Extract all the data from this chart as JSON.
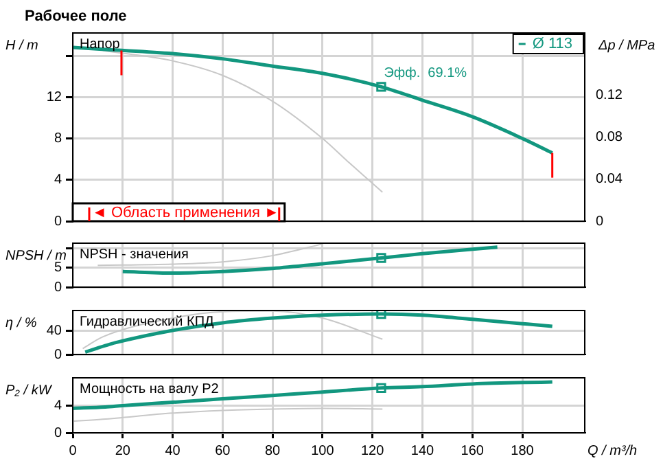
{
  "chart_data": [
    {
      "type": "line",
      "title": "Рабочее поле",
      "ylabel": "H / m",
      "y2label": "Δp / MPa",
      "xlim": [
        0,
        205
      ],
      "xticks": [
        0,
        20,
        40,
        60,
        80,
        100,
        120,
        140,
        160,
        180
      ],
      "ylim": [
        0,
        18.2
      ],
      "yticks": [
        0,
        4,
        8,
        12,
        {
          "value": 16,
          "label": null
        }
      ],
      "y2lim": [
        0,
        0.179
      ],
      "y2ticks": [
        0,
        0.04,
        0.08,
        0.12
      ],
      "tick_labels": "y",
      "grid": true,
      "legend": "top right",
      "marker": "none",
      "series": [
        {
          "name": "Ø 113",
          "color": "#12977f",
          "x": [
            0,
            13,
            40,
            60,
            80,
            100,
            123.5,
            140,
            160,
            180,
            192
          ],
          "values": [
            16.8,
            16.6,
            16.2,
            15.7,
            15.0,
            14.3,
            13.0,
            11.7,
            10.1,
            8.0,
            6.6
          ]
        },
        {
          "color": "#c8c8c8",
          "x": [
            12,
            40,
            60,
            80,
            100,
            110,
            124
          ],
          "values": [
            16.5,
            15.5,
            14.1,
            11.6,
            8.0,
            5.8,
            2.8
          ]
        },
        {
          "type": "scatter",
          "marker": "square",
          "color": "#12977f",
          "x": [
            123.5
          ],
          "values": [
            13.0
          ]
        }
      ],
      "annotations": [
        "Напор",
        "◄ Область применения ►",
        {
          "text": "Эфф.  69.1%",
          "x": 123.5,
          "y": 13.0
        }
      ],
      "ref_lines": [
        {
          "axis": "x",
          "value": 19.5,
          "color": "#ff0000"
        },
        {
          "axis": "x",
          "value": 192,
          "color": "#ff0000"
        }
      ]
    },
    {
      "type": "line",
      "ylabel": "NPSH / m",
      "xlim": [
        0,
        205
      ],
      "xticks": [
        0,
        20,
        40,
        60,
        80,
        100,
        120,
        140,
        160,
        180
      ],
      "ylim": [
        0,
        11.3
      ],
      "yticks": [
        0,
        5,
        {
          "value": 10,
          "label": null
        }
      ],
      "tick_labels": "y",
      "grid": true,
      "marker": "none",
      "series": [
        {
          "color": "#12977f",
          "x": [
            20,
            40,
            60,
            80,
            100,
            123.5,
            140,
            170
          ],
          "values": [
            4.0,
            3.6,
            4.0,
            4.8,
            6.0,
            7.5,
            8.6,
            10.3
          ]
        },
        {
          "color": "#c8c8c8",
          "x": [
            10,
            40,
            60,
            80,
            100
          ],
          "values": [
            5.6,
            5.9,
            6.5,
            8.1,
            11.1
          ]
        },
        {
          "type": "scatter",
          "marker": "square",
          "color": "#12977f",
          "x": [
            123.5
          ],
          "values": [
            7.5
          ]
        }
      ],
      "annotations": [
        "NPSH - значения"
      ]
    },
    {
      "type": "line",
      "ylabel": "η / %",
      "xlim": [
        0,
        205
      ],
      "xticks": [
        0,
        20,
        40,
        60,
        80,
        100,
        120,
        140,
        160,
        180
      ],
      "ylim": [
        0,
        75
      ],
      "yticks": [
        0,
        40
      ],
      "tick_labels": "y",
      "grid": true,
      "marker": "none",
      "series": [
        {
          "color": "#12977f",
          "x": [
            5,
            13,
            17,
            40,
            60,
            80,
            100,
            123.5,
            140,
            160,
            192
          ],
          "values": [
            4,
            15,
            20,
            41,
            54,
            62,
            67,
            69,
            67,
            60,
            48
          ]
        },
        {
          "color": "#c8c8c8",
          "x": [
            4,
            12,
            40,
            60,
            80,
            100,
            124
          ],
          "values": [
            10,
            30,
            62,
            73,
            74,
            62,
            26
          ]
        },
        {
          "type": "scatter",
          "marker": "square",
          "color": "#12977f",
          "x": [
            123.5
          ],
          "values": [
            69
          ]
        }
      ],
      "annotations": [
        "Гидравлический КПД"
      ]
    },
    {
      "type": "line",
      "ylabel": "P₂ / kW",
      "xlabel": "Q / m³/h",
      "xlim": [
        0,
        205
      ],
      "xticks": [
        0,
        20,
        40,
        60,
        80,
        100,
        120,
        140,
        160,
        180
      ],
      "ylim": [
        0,
        8.1
      ],
      "yticks": [
        0,
        4
      ],
      "grid": true,
      "marker": "none",
      "series": [
        {
          "color": "#12977f",
          "x": [
            0,
            13,
            20,
            40,
            60,
            80,
            100,
            123.5,
            140,
            160,
            192
          ],
          "values": [
            3.6,
            3.8,
            4.0,
            4.5,
            5.0,
            5.5,
            6.0,
            6.6,
            6.8,
            7.2,
            7.5
          ]
        },
        {
          "color": "#c8c8c8",
          "x": [
            0,
            12,
            40,
            60,
            80,
            100,
            124
          ],
          "values": [
            1.7,
            2.0,
            2.9,
            3.3,
            3.5,
            3.6,
            3.5
          ]
        },
        {
          "type": "scatter",
          "marker": "square",
          "color": "#12977f",
          "x": [
            123.5
          ],
          "values": [
            6.6
          ]
        }
      ],
      "annotations": [
        "Мощность на валу P2"
      ]
    }
  ]
}
